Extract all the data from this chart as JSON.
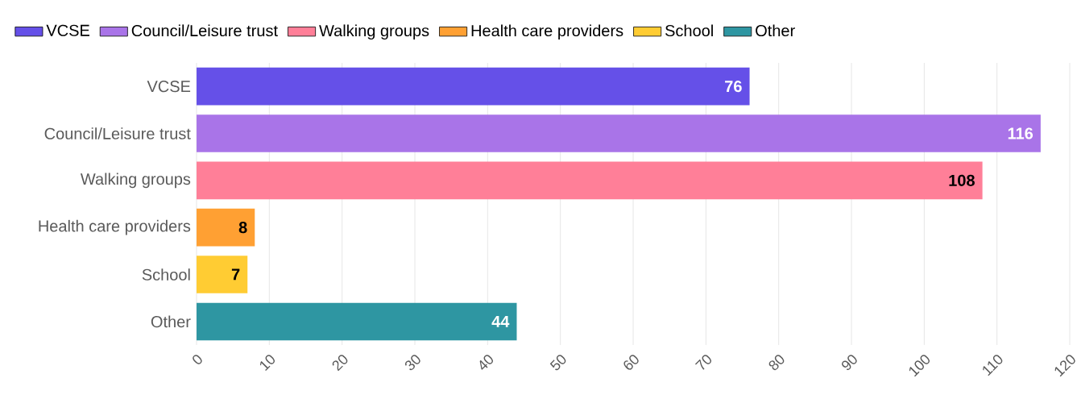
{
  "chart_data": {
    "type": "bar",
    "orientation": "horizontal",
    "categories": [
      "VCSE",
      "Council/Leisure trust",
      "Walking groups",
      "Health care providers",
      "School",
      "Other"
    ],
    "series": [
      {
        "name": "VCSE",
        "color": "#6550e8",
        "values": [
          76,
          null,
          null,
          null,
          null,
          null
        ]
      },
      {
        "name": "Council/Leisure trust",
        "color": "#a974e8",
        "values": [
          null,
          116,
          null,
          null,
          null,
          null
        ]
      },
      {
        "name": "Walking groups",
        "color": "#ff7f98",
        "values": [
          null,
          null,
          108,
          null,
          null,
          null
        ]
      },
      {
        "name": "Health care providers",
        "color": "#ffa033",
        "values": [
          null,
          null,
          null,
          8,
          null,
          null
        ]
      },
      {
        "name": "School",
        "color": "#ffcc33",
        "values": [
          null,
          null,
          null,
          null,
          7,
          null
        ]
      },
      {
        "name": "Other",
        "color": "#2e96a2",
        "values": [
          null,
          null,
          null,
          null,
          null,
          44
        ]
      }
    ],
    "xlim": [
      0,
      120
    ],
    "xticks": [
      0,
      10,
      20,
      30,
      40,
      50,
      60,
      70,
      80,
      90,
      100,
      110,
      120
    ],
    "grid": "x",
    "legend": "top left",
    "data_labels": true
  }
}
